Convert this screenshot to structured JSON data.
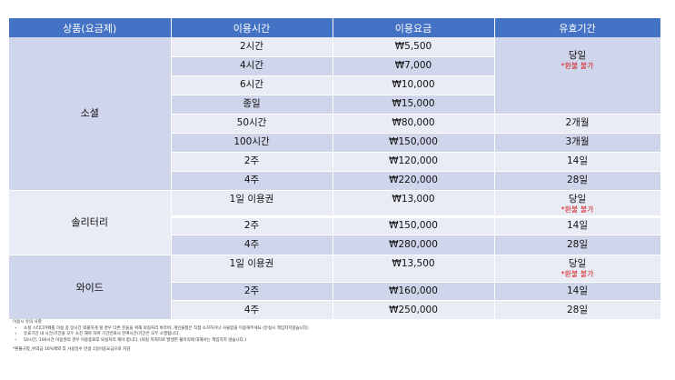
{
  "table": {
    "headers": [
      "상품(요금제)",
      "이용시간",
      "이용요금",
      "유효기간"
    ],
    "groups": {
      "social": {
        "name": "소셜",
        "rows": [
          {
            "time": "2시간",
            "price": "₩5,500"
          },
          {
            "time": "4시간",
            "price": "₩7,000"
          },
          {
            "time": "6시간",
            "price": "₩10,000"
          },
          {
            "time": "종일",
            "price": "₩15,000"
          },
          {
            "time": "50시간",
            "price": "₩80,000",
            "validity": "2개월"
          },
          {
            "time": "100시간",
            "price": "₩150,000",
            "validity": "3개월"
          },
          {
            "time": "2주",
            "price": "₩120,000",
            "validity": "14일"
          },
          {
            "time": "4주",
            "price": "₩220,000",
            "validity": "28일"
          }
        ],
        "validity_merged": "당일",
        "validity_note": "*환불 불가"
      },
      "solitary": {
        "name": "솔리터리",
        "rows": [
          {
            "time": "1일 이용권",
            "price": "₩13,000",
            "validity": "당일",
            "note": "*환불 불가"
          },
          {
            "time": "2주",
            "price": "₩150,000",
            "validity": "14일"
          },
          {
            "time": "4주",
            "price": "₩280,000",
            "validity": "28일"
          }
        ]
      },
      "wide": {
        "name": "와이드",
        "rows": [
          {
            "time": "1일 이용권",
            "price": "₩13,500",
            "validity": "당일",
            "note": "*환불 불가"
          },
          {
            "time": "2주",
            "price": "₩160,000",
            "validity": "14일"
          },
          {
            "time": "4주",
            "price": "₩250,000",
            "validity": "28일"
          }
        ]
      }
    }
  },
  "notes": {
    "title": "이용시 유의 사항",
    "items": [
      "소셜 스터디카페를 이용 중 장시간 외출하게 될 경우 다른 분들을 위해 퇴실처리 바라며, 개인물품은 직접 소지하거나 사물함을 이용해주세요 (분실시 책임지지않습니다)",
      "유효기간 내 시간/기간을 모두 소진 해야 하며 기간만료시 잔여시간/기간은 모두 소멸됩니다.",
      "50시간, 100시간 이용권의 경우 이용종료후 퇴실처리 해야 합니다. (퇴실 미처리로 발생한 불이익에 대해서는 책임지지 않습니다.)"
    ],
    "footnote": "*환불규정_위약금 10%제외 후 사용일수 만큼 1일이용요금으로 차감"
  }
}
